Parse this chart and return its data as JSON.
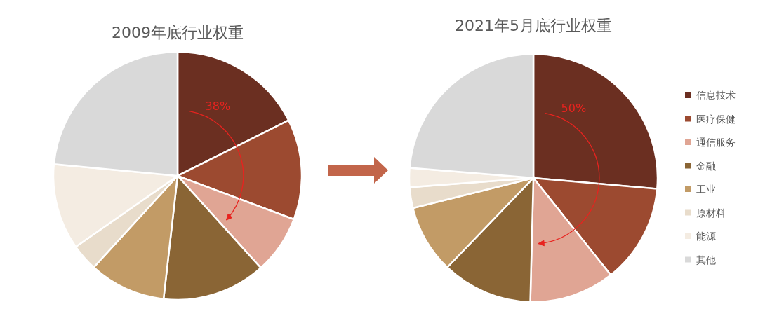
{
  "chart_data": [
    {
      "type": "pie",
      "title": "2009年底行业权重",
      "categories": [
        null,
        null,
        null,
        null,
        null,
        null,
        null,
        null
      ],
      "values": [
        17.6,
        13.1,
        7.6,
        13.5,
        10.0,
        3.5,
        11.2,
        23.5
      ],
      "colors": [
        "#6b2f21",
        "#9c4a30",
        "#e0a594",
        "#8a6535",
        "#c29b66",
        "#e8dccb",
        "#f4ece2",
        "#d9d9d9"
      ],
      "annotations": [
        "38%"
      ]
    },
    {
      "type": "pie",
      "title": "2021年5月底行业权重",
      "categories": [
        "信息技术",
        "医疗保健",
        "通信服务",
        "金融",
        "工业",
        "原材料",
        "能源",
        "其他"
      ],
      "values": [
        26.4,
        12.9,
        11.1,
        11.8,
        8.9,
        2.7,
        2.5,
        23.7
      ],
      "colors": [
        "#6b2f21",
        "#9c4a30",
        "#e0a594",
        "#8a6535",
        "#c29b66",
        "#e8dccb",
        "#f4ece2",
        "#d9d9d9"
      ],
      "annotations": [
        "50%"
      ],
      "legend": "right"
    }
  ]
}
